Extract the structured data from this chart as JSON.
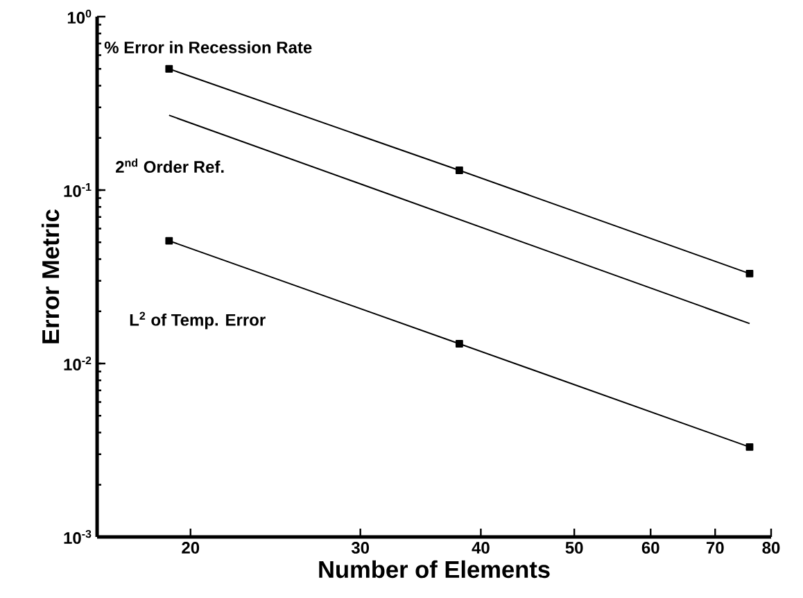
{
  "chart_data": {
    "type": "line",
    "xlabel": "Number of Elements",
    "ylabel": "Error Metric",
    "log": "xy",
    "grid": false,
    "legend": false,
    "xlim": [
      16,
      80
    ],
    "xticks": [
      20,
      30,
      40,
      50,
      60,
      70,
      80
    ],
    "ylim": [
      0.001,
      1
    ],
    "yticks": [
      {
        "value": 0.001,
        "label": "10$^{-3}$"
      },
      {
        "value": 0.01,
        "label": "10$^{-2}$"
      },
      {
        "value": 0.1,
        "label": "10$^{-1}$"
      },
      {
        "value": 1,
        "label": "10$^{0}$"
      }
    ],
    "series": [
      {
        "name": "% Error in Recession Rate",
        "color": "#000000",
        "x": [
          19,
          38,
          76
        ],
        "values": [
          0.5,
          0.13,
          0.033
        ],
        "marker": "square",
        "line_style": "solid"
      },
      {
        "name": "2$^{nd}$ Order Ref.",
        "color": "#000000",
        "x": [
          19,
          76
        ],
        "values": [
          0.27,
          0.017
        ],
        "marker": "none",
        "line_style": "solid"
      },
      {
        "name": "L$^{2}$ of Temp. Error",
        "color": "#000000",
        "x": [
          19,
          38,
          76
        ],
        "values": [
          0.051,
          0.013,
          0.0033
        ],
        "marker": "square",
        "line_style": "solid"
      }
    ]
  }
}
